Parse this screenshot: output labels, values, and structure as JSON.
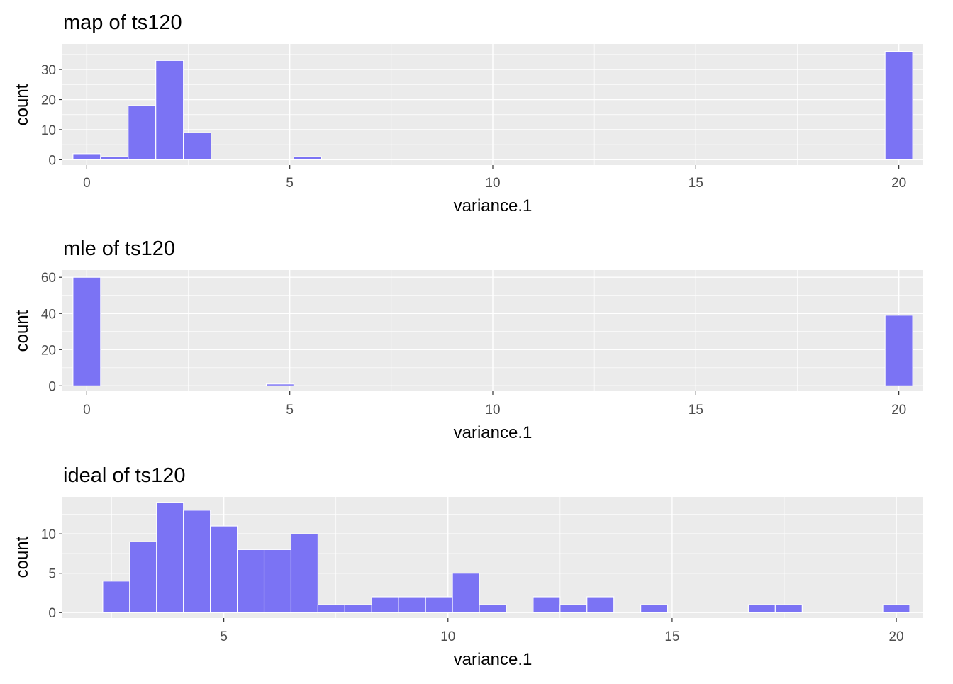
{
  "chart_data": [
    {
      "type": "bar",
      "title": "map of ts120",
      "xlabel": "variance.1",
      "ylabel": "count",
      "xlim": [
        -0.6,
        20.6
      ],
      "ylim": [
        -1.8,
        38.5
      ],
      "x_ticks": [
        0,
        5,
        10,
        15,
        20
      ],
      "x_tick_labels": [
        "0",
        "5",
        "10",
        "15",
        "20"
      ],
      "y_ticks": [
        0,
        10,
        20,
        30
      ],
      "y_tick_labels": [
        "0",
        "10",
        "20",
        "30"
      ],
      "grid": true,
      "bin_width": 0.68,
      "bins": [
        {
          "x0": -0.34,
          "x1": 0.34,
          "count": 2
        },
        {
          "x0": 0.34,
          "x1": 1.02,
          "count": 1
        },
        {
          "x0": 1.02,
          "x1": 1.7,
          "count": 18
        },
        {
          "x0": 1.7,
          "x1": 2.38,
          "count": 33
        },
        {
          "x0": 2.38,
          "x1": 3.06,
          "count": 9
        },
        {
          "x0": 5.1,
          "x1": 5.78,
          "count": 1
        },
        {
          "x0": 19.66,
          "x1": 20.34,
          "count": 36
        }
      ]
    },
    {
      "type": "bar",
      "title": "mle of ts120",
      "xlabel": "variance.1",
      "ylabel": "count",
      "xlim": [
        -0.6,
        20.6
      ],
      "ylim": [
        -3,
        64
      ],
      "x_ticks": [
        0,
        5,
        10,
        15,
        20
      ],
      "x_tick_labels": [
        "0",
        "5",
        "10",
        "15",
        "20"
      ],
      "y_ticks": [
        0,
        20,
        40,
        60
      ],
      "y_tick_labels": [
        "0",
        "20",
        "40",
        "60"
      ],
      "grid": true,
      "bin_width": 0.68,
      "bins": [
        {
          "x0": -0.34,
          "x1": 0.34,
          "count": 60
        },
        {
          "x0": 4.42,
          "x1": 5.1,
          "count": 1
        },
        {
          "x0": 19.66,
          "x1": 20.34,
          "count": 39
        }
      ]
    },
    {
      "type": "bar",
      "title": "ideal of ts120",
      "xlabel": "variance.1",
      "ylabel": "count",
      "xlim": [
        1.4,
        20.6
      ],
      "ylim": [
        -0.7,
        14.7
      ],
      "x_ticks": [
        5,
        10,
        15,
        20
      ],
      "x_tick_labels": [
        "5",
        "10",
        "15",
        "20"
      ],
      "y_ticks": [
        0,
        5,
        10
      ],
      "y_tick_labels": [
        "0",
        "5",
        "10"
      ],
      "grid": true,
      "bin_width": 0.6,
      "bins": [
        {
          "x0": 2.3,
          "x1": 2.9,
          "count": 4
        },
        {
          "x0": 2.9,
          "x1": 3.5,
          "count": 9
        },
        {
          "x0": 3.5,
          "x1": 4.1,
          "count": 14
        },
        {
          "x0": 4.1,
          "x1": 4.7,
          "count": 13
        },
        {
          "x0": 4.7,
          "x1": 5.3,
          "count": 11
        },
        {
          "x0": 5.3,
          "x1": 5.9,
          "count": 8
        },
        {
          "x0": 5.9,
          "x1": 6.5,
          "count": 8
        },
        {
          "x0": 6.5,
          "x1": 7.1,
          "count": 10
        },
        {
          "x0": 7.1,
          "x1": 7.7,
          "count": 1
        },
        {
          "x0": 7.7,
          "x1": 8.3,
          "count": 1
        },
        {
          "x0": 8.3,
          "x1": 8.9,
          "count": 2
        },
        {
          "x0": 8.9,
          "x1": 9.5,
          "count": 2
        },
        {
          "x0": 9.5,
          "x1": 10.1,
          "count": 2
        },
        {
          "x0": 10.1,
          "x1": 10.7,
          "count": 5
        },
        {
          "x0": 10.7,
          "x1": 11.3,
          "count": 1
        },
        {
          "x0": 11.9,
          "x1": 12.5,
          "count": 2
        },
        {
          "x0": 12.5,
          "x1": 13.1,
          "count": 1
        },
        {
          "x0": 13.1,
          "x1": 13.7,
          "count": 2
        },
        {
          "x0": 14.3,
          "x1": 14.9,
          "count": 1
        },
        {
          "x0": 16.7,
          "x1": 17.3,
          "count": 1
        },
        {
          "x0": 17.3,
          "x1": 17.9,
          "count": 1
        },
        {
          "x0": 19.7,
          "x1": 20.3,
          "count": 1
        }
      ]
    }
  ],
  "colors": {
    "bar_fill": "#7b73f4",
    "bar_stroke": "#ffffff",
    "panel_bg": "#ebebeb",
    "grid": "#ffffff",
    "text": "#000000",
    "tick_text": "#4d4d4d",
    "tick_mark": "#333333"
  }
}
